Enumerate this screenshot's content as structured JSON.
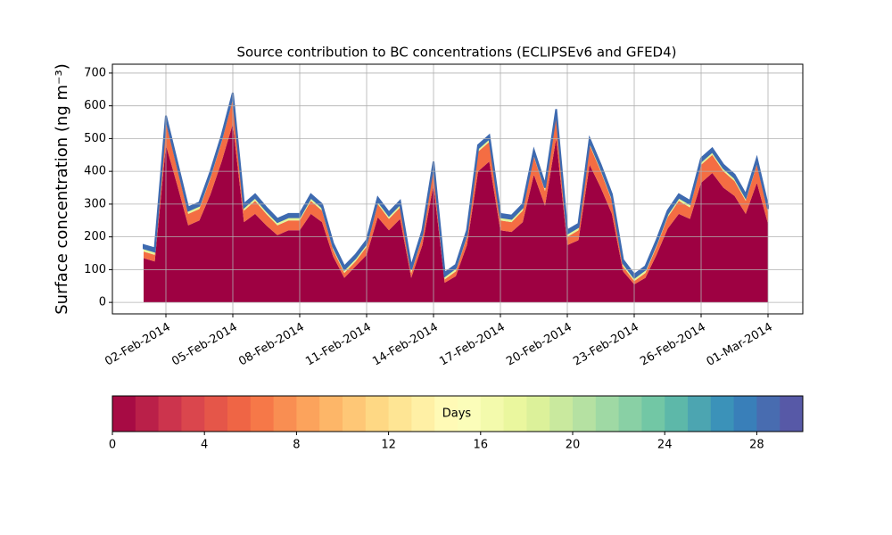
{
  "chart_data": {
    "type": "stacked_area",
    "title": "Source contribution to BC concentrations (ECLIPSEv6 and GFED4)",
    "y_label": "Surface concentration (ng m⁻³)",
    "x": [
      "2014-02-01T00:00",
      "2014-02-01T12:00",
      "2014-02-02T00:00",
      "2014-02-02T12:00",
      "2014-02-03T00:00",
      "2014-02-03T12:00",
      "2014-02-04T00:00",
      "2014-02-04T12:00",
      "2014-02-05T00:00",
      "2014-02-05T12:00",
      "2014-02-06T00:00",
      "2014-02-06T12:00",
      "2014-02-07T00:00",
      "2014-02-07T12:00",
      "2014-02-08T00:00",
      "2014-02-08T12:00",
      "2014-02-09T00:00",
      "2014-02-09T12:00",
      "2014-02-10T00:00",
      "2014-02-10T12:00",
      "2014-02-11T00:00",
      "2014-02-11T12:00",
      "2014-02-12T00:00",
      "2014-02-12T12:00",
      "2014-02-13T00:00",
      "2014-02-13T12:00",
      "2014-02-14T00:00",
      "2014-02-14T12:00",
      "2014-02-15T00:00",
      "2014-02-15T12:00",
      "2014-02-16T00:00",
      "2014-02-16T12:00",
      "2014-02-17T00:00",
      "2014-02-17T12:00",
      "2014-02-18T00:00",
      "2014-02-18T12:00",
      "2014-02-19T00:00",
      "2014-02-19T12:00",
      "2014-02-20T00:00",
      "2014-02-20T12:00",
      "2014-02-21T00:00",
      "2014-02-21T12:00",
      "2014-02-22T00:00",
      "2014-02-22T12:00",
      "2014-02-23T00:00",
      "2014-02-23T12:00",
      "2014-02-24T00:00",
      "2014-02-24T12:00",
      "2014-02-25T00:00",
      "2014-02-25T12:00",
      "2014-02-26T00:00",
      "2014-02-26T12:00",
      "2014-02-27T00:00",
      "2014-02-27T12:00",
      "2014-02-28T00:00",
      "2014-02-28T12:00",
      "2014-03-01T00:00"
    ],
    "series": [
      {
        "color": "#9e0142",
        "values": [
          135,
          125,
          480,
          360,
          235,
          250,
          330,
          430,
          545,
          245,
          270,
          235,
          205,
          220,
          220,
          270,
          245,
          140,
          75,
          110,
          145,
          260,
          220,
          255,
          75,
          175,
          360,
          60,
          80,
          175,
          400,
          430,
          220,
          215,
          245,
          390,
          295,
          500,
          175,
          190,
          420,
          350,
          270,
          95,
          55,
          75,
          145,
          225,
          270,
          255,
          365,
          395,
          350,
          325,
          270,
          365,
          240
        ]
      },
      {
        "color": "#f46d43",
        "values": [
          20,
          20,
          70,
          50,
          35,
          35,
          50,
          60,
          75,
          35,
          40,
          35,
          30,
          30,
          30,
          40,
          35,
          20,
          15,
          15,
          25,
          40,
          35,
          35,
          15,
          25,
          50,
          10,
          15,
          25,
          60,
          60,
          30,
          30,
          35,
          55,
          45,
          70,
          25,
          30,
          60,
          50,
          40,
          15,
          10,
          15,
          25,
          35,
          40,
          35,
          55,
          55,
          50,
          45,
          40,
          55,
          35
        ]
      },
      {
        "color": "#e6f598",
        "values": [
          10,
          10,
          10,
          10,
          10,
          10,
          10,
          10,
          10,
          10,
          10,
          10,
          10,
          10,
          10,
          10,
          10,
          10,
          10,
          10,
          10,
          10,
          10,
          10,
          10,
          10,
          10,
          10,
          10,
          10,
          10,
          10,
          10,
          10,
          10,
          10,
          10,
          10,
          10,
          10,
          10,
          10,
          10,
          10,
          10,
          10,
          10,
          10,
          10,
          10,
          10,
          10,
          10,
          10,
          10,
          10,
          10
        ]
      },
      {
        "color": "#3e6ab0",
        "values": [
          10,
          10,
          10,
          10,
          10,
          10,
          10,
          10,
          10,
          10,
          10,
          10,
          10,
          10,
          10,
          10,
          10,
          10,
          10,
          10,
          10,
          10,
          10,
          10,
          10,
          10,
          10,
          10,
          10,
          10,
          10,
          10,
          10,
          10,
          10,
          10,
          10,
          10,
          10,
          10,
          10,
          10,
          10,
          10,
          10,
          10,
          10,
          10,
          10,
          10,
          10,
          10,
          10,
          10,
          10,
          10,
          10
        ]
      }
    ],
    "xlim": [
      "2014-01-30T14:24",
      "2014-03-02T13:26"
    ],
    "xticks": [
      {
        "value": "2014-02-02",
        "label": "02-Feb-2014"
      },
      {
        "value": "2014-02-05",
        "label": "05-Feb-2014"
      },
      {
        "value": "2014-02-08",
        "label": "08-Feb-2014"
      },
      {
        "value": "2014-02-11",
        "label": "11-Feb-2014"
      },
      {
        "value": "2014-02-14",
        "label": "14-Feb-2014"
      },
      {
        "value": "2014-02-17",
        "label": "17-Feb-2014"
      },
      {
        "value": "2014-02-20",
        "label": "20-Feb-2014"
      },
      {
        "value": "2014-02-23",
        "label": "23-Feb-2014"
      },
      {
        "value": "2014-02-26",
        "label": "26-Feb-2014"
      },
      {
        "value": "2014-03-01",
        "label": "01-Mar-2014"
      }
    ],
    "ylim": [
      -35,
      727
    ],
    "yticks": [
      0,
      100,
      200,
      300,
      400,
      500,
      600,
      700
    ],
    "grid": true,
    "colorbar": {
      "label": "Days",
      "lim": [
        0,
        30
      ],
      "ticks": [
        0,
        4,
        8,
        12,
        16,
        20,
        24,
        28
      ],
      "n_colors": 30,
      "colormap": [
        "#9e0142",
        "#d53e4f",
        "#f46d43",
        "#fdae61",
        "#fee08b",
        "#ffffbf",
        "#e6f598",
        "#abdda4",
        "#66c2a5",
        "#3288bd",
        "#5e4fa2"
      ]
    }
  }
}
